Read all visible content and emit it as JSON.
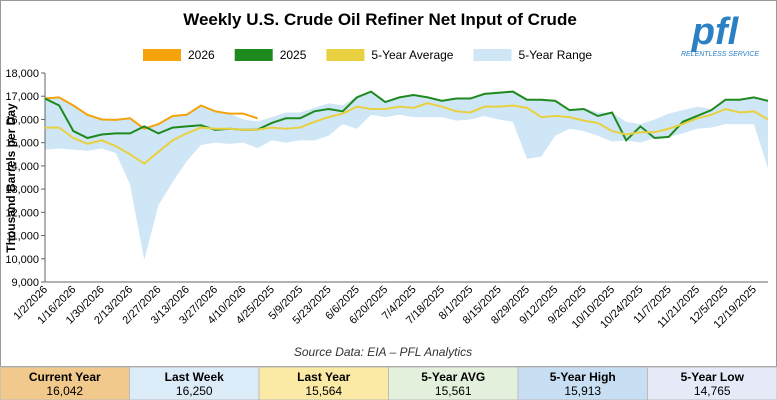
{
  "chart_data": {
    "type": "line",
    "title": "Weekly U.S. Crude Oil Refiner Net Input of Crude",
    "y_label": "Thousand Barrels per Day",
    "source": "Source Data: EIA – PFL Analytics",
    "logo": {
      "text": "pfl",
      "tagline": "RELENTLESS SERVICE"
    },
    "categories": [
      "1/2/2026",
      null,
      "1/16/2026",
      null,
      "1/30/2026",
      null,
      "2/13/2026",
      null,
      "2/27/2026",
      null,
      "3/13/2026",
      null,
      "3/27/2026",
      null,
      "4/10/2026",
      null,
      "4/25/2025",
      null,
      "5/9/2025",
      null,
      "5/23/2025",
      null,
      "6/6/2025",
      null,
      "6/20/2025",
      null,
      "7/4/2025",
      null,
      "7/18/2025",
      null,
      "8/1/2025",
      null,
      "8/15/2025",
      null,
      "8/29/2025",
      null,
      "9/12/2025",
      null,
      "9/26/2025",
      null,
      "10/10/2025",
      null,
      "10/24/2025",
      null,
      "11/7/2025",
      null,
      "11/21/2025",
      null,
      "12/5/2025",
      null,
      "12/19/2025",
      null
    ],
    "ylim": [
      9000,
      18000
    ],
    "yticks": [
      {
        "value": 9000,
        "label": "9,000"
      },
      {
        "value": 10000,
        "label": "10,000"
      },
      {
        "value": 11000,
        "label": "11,000"
      },
      {
        "value": 12000,
        "label": "12,000"
      },
      {
        "value": 13000,
        "label": "13,000"
      },
      {
        "value": 14000,
        "label": "14,000"
      },
      {
        "value": 15000,
        "label": "15,000"
      },
      {
        "value": 16000,
        "label": "16,000"
      },
      {
        "value": 17000,
        "label": "17,000"
      },
      {
        "value": 18000,
        "label": "18,000"
      }
    ],
    "series": [
      {
        "name": "2026",
        "color": "#f5a30a",
        "values": [
          16900,
          16950,
          16600,
          16200,
          16000,
          15980,
          16050,
          15600,
          15800,
          16150,
          16200,
          16600,
          16350,
          16250,
          16250,
          16042,
          null,
          null,
          null,
          null,
          null,
          null,
          null,
          null,
          null,
          null,
          null,
          null,
          null,
          null,
          null,
          null,
          null,
          null,
          null,
          null,
          null,
          null,
          null,
          null,
          null,
          null,
          null,
          null,
          null,
          null,
          null,
          null,
          null,
          null,
          null,
          null
        ]
      },
      {
        "name": "2025",
        "color": "#1e8a1e",
        "values": [
          16900,
          16600,
          15500,
          15200,
          15350,
          15400,
          15400,
          15700,
          15400,
          15650,
          15700,
          15750,
          15550,
          15600,
          15550,
          15564,
          15850,
          16050,
          16050,
          16350,
          16450,
          16350,
          16950,
          17200,
          16750,
          16950,
          17050,
          16950,
          16800,
          16900,
          16900,
          17100,
          17150,
          17200,
          16850,
          16850,
          16800,
          16400,
          16450,
          16150,
          16300,
          15100,
          15700,
          15200,
          15250,
          15900,
          16150,
          16400,
          16850,
          16850,
          16950,
          16800
        ]
      },
      {
        "name": "5-Year Average",
        "color": "#e8d040",
        "values": [
          15650,
          15650,
          15200,
          14950,
          15100,
          14850,
          14500,
          14100,
          14600,
          15100,
          15400,
          15650,
          15600,
          15600,
          15550,
          15561,
          15650,
          15600,
          15650,
          15900,
          16100,
          16250,
          16550,
          16450,
          16450,
          16550,
          16500,
          16700,
          16550,
          16350,
          16300,
          16550,
          16550,
          16600,
          16500,
          16100,
          16150,
          16100,
          15950,
          15850,
          15500,
          15350,
          15450,
          15450,
          15600,
          15800,
          16050,
          16200,
          16450,
          16300,
          16350,
          16000
        ]
      },
      {
        "name": "5-Year Range",
        "color": "#cfe6f7",
        "band": true,
        "high": [
          16900,
          16950,
          16650,
          16200,
          16050,
          16000,
          16100,
          15650,
          15800,
          16100,
          16200,
          16550,
          16400,
          16250,
          16000,
          15913,
          16100,
          16300,
          16300,
          16500,
          16700,
          16600,
          17000,
          17200,
          16800,
          16950,
          17050,
          16950,
          16800,
          16900,
          16900,
          17100,
          17150,
          17200,
          16850,
          16850,
          16800,
          16450,
          16500,
          16300,
          16300,
          15900,
          15800,
          16000,
          16250,
          16400,
          16550,
          16450,
          16850,
          16850,
          16950,
          16850
        ],
        "low": [
          14700,
          14750,
          14700,
          14650,
          14750,
          14550,
          13200,
          9950,
          12300,
          13300,
          14200,
          14900,
          15000,
          14950,
          15000,
          14765,
          15100,
          15000,
          15100,
          15100,
          15300,
          15800,
          15600,
          16200,
          16100,
          16200,
          16100,
          16100,
          16100,
          15950,
          16000,
          16150,
          16000,
          15900,
          14300,
          14400,
          15300,
          15600,
          15500,
          15300,
          15050,
          15100,
          15000,
          15200,
          15250,
          15400,
          15600,
          15650,
          15800,
          15800,
          15800,
          13900
        ]
      }
    ],
    "summary": [
      {
        "label": "Current Year",
        "value": "16,042",
        "color": "#f2c98c"
      },
      {
        "label": "Last Week",
        "value": "16,250",
        "color": "#dcebf8"
      },
      {
        "label": "Last Year",
        "value": "15,564",
        "color": "#fbeaa6"
      },
      {
        "label": "5-Year AVG",
        "value": "15,561",
        "color": "#e3f1dc"
      },
      {
        "label": "5-Year High",
        "value": "15,913",
        "color": "#c8def3"
      },
      {
        "label": "5-Year Low",
        "value": "14,765",
        "color": "#e6e9f7"
      }
    ]
  }
}
